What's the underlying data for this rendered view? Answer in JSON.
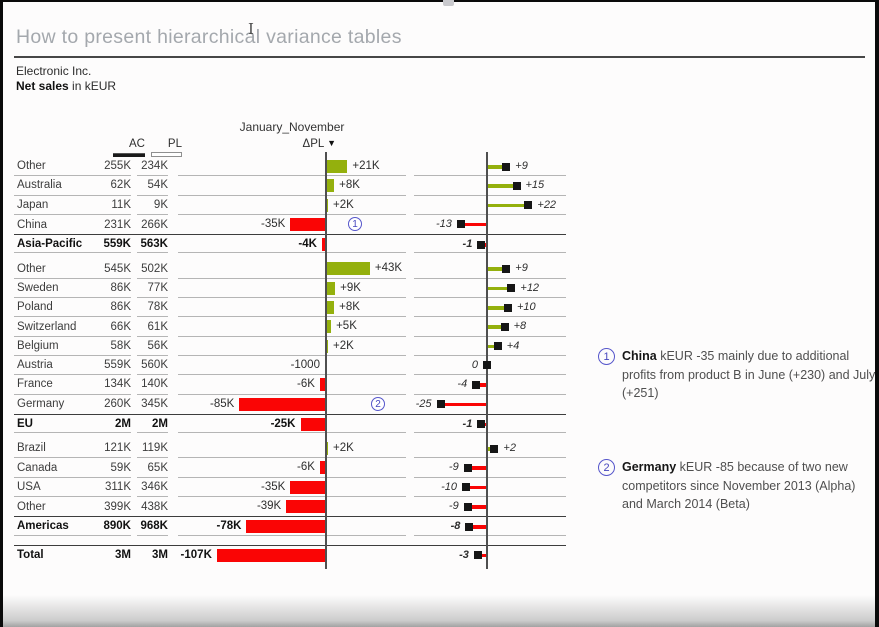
{
  "page": {
    "title": "How to present hierarchical variance tables",
    "company": "Electronic Inc.",
    "measure": "Net sales",
    "measure_suffix": " in kEUR"
  },
  "colors": {
    "positive": "#94b00d",
    "negative": "#fa0505",
    "marker": "#161616",
    "annotation_accent": "#5656cb",
    "title_gray": "#a4a8ad"
  },
  "chart_data": {
    "type": "bar",
    "subtype": "hierarchical-variance-table",
    "title": "January_November",
    "columns": {
      "ac": "AC",
      "pl": "PL",
      "delta": "ΔPL",
      "sort_icon": "▼"
    },
    "units": "kEUR",
    "axis1_range": [
      -110,
      50
    ],
    "axis2_range": [
      -26,
      23
    ],
    "grid": false,
    "sections": [
      {
        "rows": [
          {
            "label": "Other",
            "ac": "255K",
            "pl": "234K",
            "d1_label": "+21K",
            "d1": 21,
            "d2_label": "+9",
            "d2": 9
          },
          {
            "label": "Australia",
            "ac": "62K",
            "pl": "54K",
            "d1_label": "+8K",
            "d1": 8,
            "d2_label": "+15",
            "d2": 15
          },
          {
            "label": "Japan",
            "ac": "11K",
            "pl": "9K",
            "d1_label": "+2K",
            "d1": 2,
            "d2_label": "+22",
            "d2": 22
          },
          {
            "label": "China",
            "ac": "231K",
            "pl": "266K",
            "d1_label": "-35K",
            "d1": -35,
            "d2_label": "-13",
            "d2": -13,
            "note": "1"
          },
          {
            "label": "Asia-Pacific",
            "ac": "559K",
            "pl": "563K",
            "d1_label": "-4K",
            "d1": -4,
            "d2_label": "-1",
            "d2": -1,
            "bold": true
          }
        ]
      },
      {
        "rows": [
          {
            "label": "Other",
            "ac": "545K",
            "pl": "502K",
            "d1_label": "+43K",
            "d1": 43,
            "d2_label": "+9",
            "d2": 9
          },
          {
            "label": "Sweden",
            "ac": "86K",
            "pl": "77K",
            "d1_label": "+9K",
            "d1": 9,
            "d2_label": "+12",
            "d2": 12
          },
          {
            "label": "Poland",
            "ac": "86K",
            "pl": "78K",
            "d1_label": "+8K",
            "d1": 8,
            "d2_label": "+10",
            "d2": 10
          },
          {
            "label": "Switzerland",
            "ac": "66K",
            "pl": "61K",
            "d1_label": "+5K",
            "d1": 5,
            "d2_label": "+8",
            "d2": 8
          },
          {
            "label": "Belgium",
            "ac": "58K",
            "pl": "56K",
            "d1_label": "+2K",
            "d1": 2,
            "d2_label": "+4",
            "d2": 4
          },
          {
            "label": "Austria",
            "ac": "559K",
            "pl": "560K",
            "d1_label": "-1000",
            "d1": -1,
            "d2_label": "0",
            "d2": 0
          },
          {
            "label": "France",
            "ac": "134K",
            "pl": "140K",
            "d1_label": "-6K",
            "d1": -6,
            "d2_label": "-4",
            "d2": -4
          },
          {
            "label": "Germany",
            "ac": "260K",
            "pl": "345K",
            "d1_label": "-85K",
            "d1": -85,
            "d2_label": "-25",
            "d2": -25,
            "note": "2"
          },
          {
            "label": "EU",
            "ac": "2M",
            "pl": "2M",
            "d1_label": "-25K",
            "d1": -25,
            "d2_label": "-1",
            "d2": -1,
            "bold": true
          }
        ]
      },
      {
        "rows": [
          {
            "label": "Brazil",
            "ac": "121K",
            "pl": "119K",
            "d1_label": "+2K",
            "d1": 2,
            "d2_label": "+2",
            "d2": 2
          },
          {
            "label": "Canada",
            "ac": "59K",
            "pl": "65K",
            "d1_label": "-6K",
            "d1": -6,
            "d2_label": "-9",
            "d2": -9
          },
          {
            "label": "USA",
            "ac": "311K",
            "pl": "346K",
            "d1_label": "-35K",
            "d1": -35,
            "d2_label": "-10",
            "d2": -10
          },
          {
            "label": "Other",
            "ac": "399K",
            "pl": "438K",
            "d1_label": "-39K",
            "d1": -39,
            "d2_label": "-9",
            "d2": -9
          },
          {
            "label": "Americas",
            "ac": "890K",
            "pl": "968K",
            "d1_label": "-78K",
            "d1": -78,
            "d2_label": "-8",
            "d2": -8,
            "bold": true
          }
        ]
      },
      {
        "rows": [
          {
            "label": "Total",
            "ac": "3M",
            "pl": "3M",
            "d1_label": "-107K",
            "d1": -107,
            "d2_label": "-3",
            "d2": -3,
            "bold": true
          }
        ]
      }
    ]
  },
  "annotations": [
    {
      "num": "1",
      "country": "China",
      "text": " kEUR -35 mainly due to additional profits from product B in June (+230) and July (+251)"
    },
    {
      "num": "2",
      "country": "Germany",
      "text": " kEUR -85 because of two new competitors since November 2013 (Alpha) and March 2014 (Beta)"
    }
  ]
}
